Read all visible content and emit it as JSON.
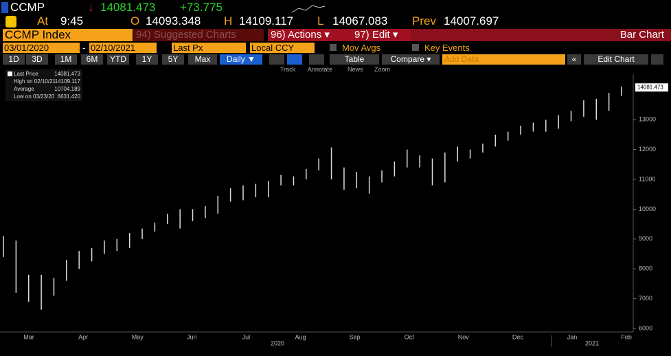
{
  "header": {
    "ticker": "CCMP",
    "last": "14081.473",
    "change": "+73.775",
    "time_label": "At",
    "time": "9:45",
    "open_label": "O",
    "open": "14093.348",
    "high_label": "H",
    "high": "14109.117",
    "low_label": "L",
    "low": "14067.083",
    "prev_label": "Prev",
    "prev": "14007.697"
  },
  "toolbar": {
    "security": "CCMP Index",
    "suggested": "94) Suggested Charts",
    "actions": "96) Actions ▾",
    "edit": "97) Edit ▾",
    "chart_type": "Bar Chart",
    "start_date": "03/01/2020",
    "date_separator": "-",
    "end_date": "02/10/2021",
    "field": "Last Px",
    "currency": "Local CCY",
    "mov_avgs": "Mov Avgs",
    "key_events": "Key Events",
    "ranges": [
      "1D",
      "3D",
      "1M",
      "6M",
      "YTD",
      "1Y",
      "5Y",
      "Max"
    ],
    "period": "Daily ▼",
    "table": "Table",
    "compare": "Compare ▾",
    "add_data": "Add Data",
    "back": "«",
    "edit_chart": "Edit Chart",
    "tools": [
      "Track",
      "Annotate",
      "News",
      "Zoom"
    ]
  },
  "chart_data": {
    "type": "ohlc",
    "legend": [
      {
        "label": "Last Price",
        "value": "14081.473"
      },
      {
        "label": "High on 02/10/21",
        "value": "14109.117"
      },
      {
        "label": "Average",
        "value": "10704.189"
      },
      {
        "label": "Low on 03/23/20",
        "value": "6631.420"
      }
    ],
    "last_price": 14081.473,
    "months": [
      "Mar",
      "Apr",
      "May",
      "Jun",
      "Jul",
      "Aug",
      "Sep",
      "Oct",
      "Nov",
      "Dec",
      "Jan",
      "Feb"
    ],
    "years": [
      "2020",
      "2021"
    ],
    "high": [
      9100,
      8950,
      7800,
      7800,
      7700,
      8300,
      8600,
      8700,
      8950,
      9000,
      9200,
      9350,
      9550,
      9850,
      10000,
      10000,
      10100,
      10450,
      10700,
      10800,
      10850,
      10950,
      11150,
      11100,
      11350,
      11700,
      12070,
      11400,
      11250,
      11100,
      11300,
      11600,
      12000,
      11800,
      11700,
      11900,
      12100,
      12000,
      12200,
      12500,
      12600,
      12800,
      12900,
      13000,
      13150,
      13300,
      13650,
      13700,
      13900,
      14109
    ],
    "low": [
      8400,
      7200,
      6900,
      6630,
      7100,
      7600,
      8000,
      8250,
      8500,
      8600,
      8700,
      9000,
      9250,
      9500,
      9350,
      9600,
      9700,
      9850,
      10250,
      10300,
      10400,
      10400,
      10800,
      10800,
      11000,
      11300,
      11000,
      10650,
      10700,
      10520,
      10900,
      11100,
      11400,
      11400,
      10800,
      10900,
      11600,
      11700,
      11900,
      12100,
      12300,
      12500,
      12600,
      12600,
      12700,
      12950,
      13100,
      13000,
      13300,
      13800
    ],
    "ylim": [
      5880,
      14470
    ],
    "yticks": [
      6000,
      7000,
      8000,
      9000,
      10000,
      11000,
      12000,
      13000
    ],
    "color": "#dddddd"
  }
}
